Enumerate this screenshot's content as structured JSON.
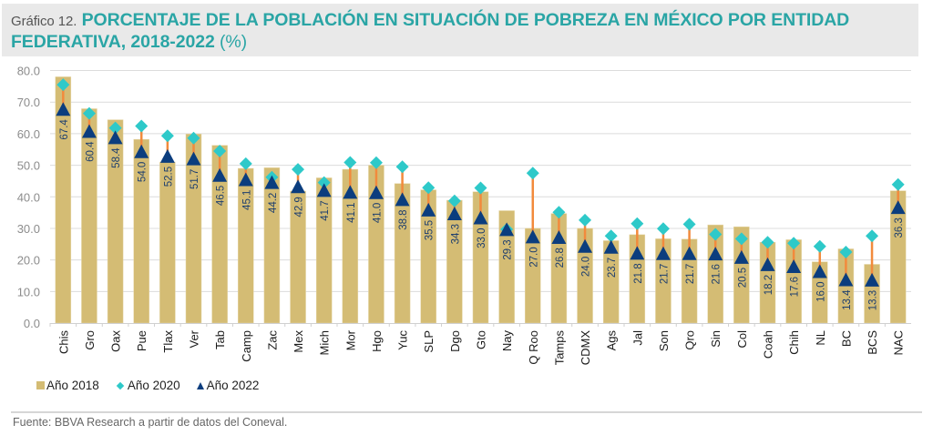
{
  "header": {
    "prefix": "Gráfico 12.",
    "title": "PORCENTAJE DE LA POBLACIÓN EN SITUACIÓN DE POBREZA EN MÉXICO POR ENTIDAD FEDERATIVA, 2018-2022",
    "unit": "(%)"
  },
  "legend": {
    "items": [
      "Año 2018",
      "Año 2020",
      "Año 2022"
    ]
  },
  "source": "Fuente: BBVA Research a partir de datos del Coneval.",
  "colors": {
    "bar_2018": "#d4bc74",
    "diamond_2020": "#2ec9c9",
    "triangle_2022": "#0b3d7e",
    "connector": "#f28a3c",
    "gridline": "#dcdcdc",
    "axis_text": "#8c8c8c",
    "title": "#2aa5a5"
  },
  "chart_data": {
    "type": "bar",
    "title": "PORCENTAJE DE LA POBLACIÓN EN SITUACIÓN DE POBREZA EN MÉXICO POR ENTIDAD FEDERATIVA, 2018-2022 (%)",
    "xlabel": "",
    "ylabel": "",
    "ylim": [
      0,
      80
    ],
    "yticks": [
      "0.0",
      "10.0",
      "20.0",
      "30.0",
      "40.0",
      "50.0",
      "60.0",
      "70.0",
      "80.0"
    ],
    "grid": true,
    "legend_position": "bottom-left",
    "categories": [
      "Chis",
      "Gro",
      "Oax",
      "Pue",
      "Tlax",
      "Ver",
      "Tab",
      "Camp",
      "Zac",
      "Mex",
      "Mich",
      "Mor",
      "Hgo",
      "Yuc",
      "SLP",
      "Dgo",
      "Gto",
      "Nay",
      "Q Roo",
      "Tamps",
      "CDMX",
      "Ags",
      "Jal",
      "Son",
      "Qro",
      "Sin",
      "Col",
      "Coah",
      "Chih",
      "NL",
      "BC",
      "BCS",
      "NAC"
    ],
    "series": [
      {
        "name": "Año 2018",
        "marker": "bar",
        "values": [
          78.0,
          67.9,
          64.4,
          58.2,
          51.0,
          59.9,
          56.3,
          49.0,
          49.2,
          41.8,
          46.0,
          48.7,
          50.0,
          44.2,
          42.2,
          38.9,
          41.6,
          35.6,
          30.0,
          34.7,
          30.0,
          26.1,
          28.0,
          26.7,
          26.6,
          31.1,
          30.5,
          25.6,
          26.4,
          19.4,
          23.5,
          18.6,
          41.9
        ]
      },
      {
        "name": "Año 2020",
        "marker": "diamond",
        "values": [
          75.5,
          66.4,
          61.8,
          62.4,
          59.3,
          58.6,
          54.5,
          50.5,
          46.2,
          48.7,
          44.5,
          50.9,
          50.8,
          49.5,
          42.9,
          38.7,
          42.8,
          29.7,
          47.5,
          35.1,
          32.6,
          27.6,
          31.5,
          29.9,
          31.3,
          28.1,
          26.7,
          25.6,
          25.3,
          24.3,
          22.5,
          27.6,
          43.9
        ]
      },
      {
        "name": "Año 2022",
        "marker": "triangle",
        "values": [
          67.4,
          60.4,
          58.4,
          54.0,
          52.5,
          51.7,
          46.5,
          45.1,
          44.2,
          42.9,
          41.7,
          41.1,
          41.0,
          38.8,
          35.5,
          34.3,
          33.0,
          29.3,
          27.0,
          26.8,
          24.0,
          23.7,
          21.8,
          21.7,
          21.7,
          21.6,
          20.5,
          18.2,
          17.6,
          16.0,
          13.4,
          13.3,
          36.3
        ],
        "data_labels": [
          "67.4",
          "60.4",
          "58.4",
          "54.0",
          "52.5",
          "51.7",
          "46.5",
          "45.1",
          "44.2",
          "42.9",
          "41.7",
          "41.1",
          "41.0",
          "38.8",
          "35.5",
          "34.3",
          "33.0",
          "29.3",
          "27.0",
          "26.8",
          "24.0",
          "23.7",
          "21.8",
          "21.7",
          "21.7",
          "21.6",
          "20.5",
          "18.2",
          "17.6",
          "16.0",
          "13.4",
          "13.3",
          "36.3"
        ]
      }
    ]
  }
}
